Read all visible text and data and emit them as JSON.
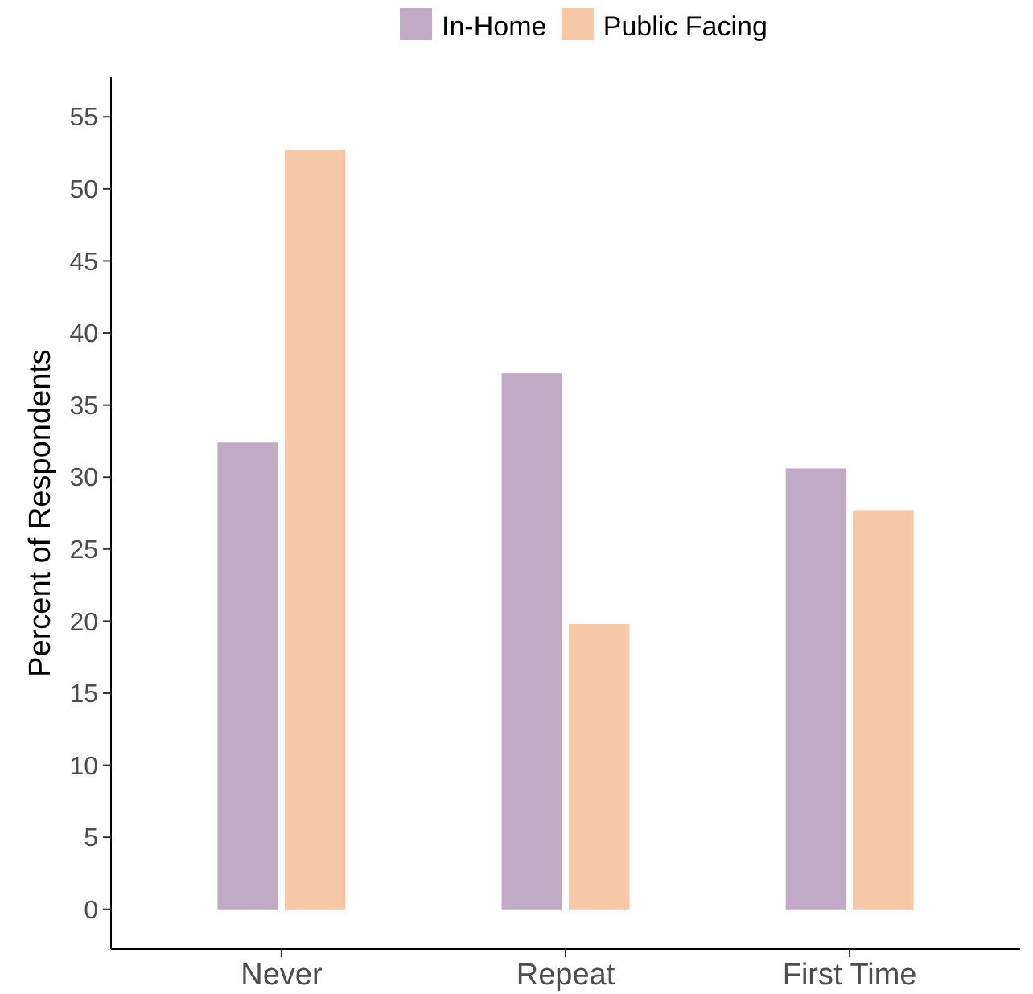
{
  "chart_data": {
    "type": "bar",
    "ylabel": "Percent of Respondents",
    "categories": [
      "Never",
      "Repeat",
      "First Time"
    ],
    "series": [
      {
        "name": "In-Home",
        "color": "#c0aac6",
        "values": [
          32.4,
          37.2,
          30.6
        ]
      },
      {
        "name": "Public Facing",
        "color": "#f6c8a8",
        "values": [
          52.7,
          19.8,
          27.7
        ]
      }
    ],
    "ylim": [
      -2.75,
      57.75
    ],
    "yticks": [
      0,
      5,
      10,
      15,
      20,
      25,
      30,
      35,
      40,
      45,
      50,
      55
    ],
    "grid": false,
    "legend": "top"
  }
}
